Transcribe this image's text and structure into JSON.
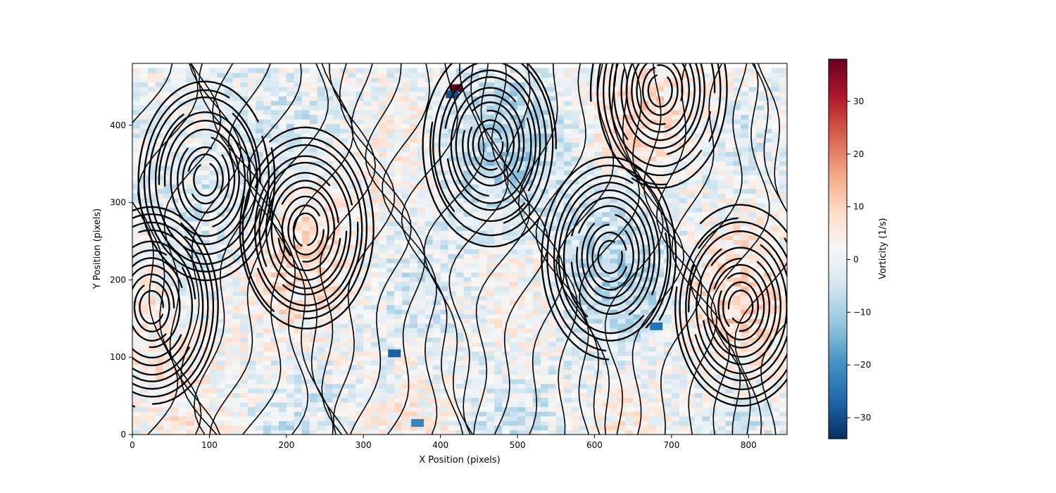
{
  "chart_data": {
    "type": "heatmap",
    "title": "",
    "xlabel": "X Position (pixels)",
    "ylabel": "Y Position (pixels)",
    "xlim": [
      0,
      850
    ],
    "ylim": [
      0,
      480
    ],
    "xticks": [
      0,
      100,
      200,
      300,
      400,
      500,
      600,
      700,
      800
    ],
    "yticks": [
      0,
      100,
      200,
      300,
      400
    ],
    "grid": false,
    "colormap": "RdBu_r",
    "colorbar": {
      "label": "Vorticity (1/s)",
      "range": [
        -34,
        38
      ],
      "ticks": [
        -30,
        -20,
        -10,
        0,
        10,
        20,
        30
      ]
    },
    "overlay": "streamlines",
    "streamline_color": "#000000",
    "vortex_centers": [
      {
        "x": 25,
        "y": 165,
        "sense": "clockwise"
      },
      {
        "x": 95,
        "y": 330,
        "sense": "counterclockwise"
      },
      {
        "x": 225,
        "y": 265,
        "sense": "clockwise"
      },
      {
        "x": 465,
        "y": 375,
        "sense": "counterclockwise"
      },
      {
        "x": 620,
        "y": 230,
        "sense": "counterclockwise"
      },
      {
        "x": 685,
        "y": 445,
        "sense": "clockwise"
      },
      {
        "x": 790,
        "y": 165,
        "sense": "clockwise"
      }
    ],
    "hotspots": [
      {
        "x": 420,
        "y": 448,
        "value": 38
      },
      {
        "x": 415,
        "y": 440,
        "value": -30
      },
      {
        "x": 340,
        "y": 105,
        "value": -28
      },
      {
        "x": 680,
        "y": 140,
        "value": -25
      },
      {
        "x": 370,
        "y": 15,
        "value": -22
      }
    ]
  }
}
